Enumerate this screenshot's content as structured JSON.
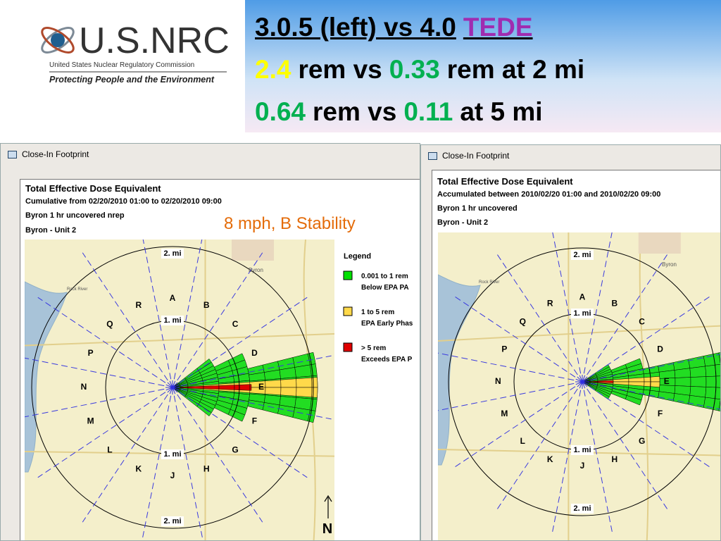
{
  "logo": {
    "name": "U.S.NRC",
    "agency": "United States Nuclear Regulatory Commission",
    "motto": "Protecting People and the Environment"
  },
  "headline": {
    "line1": {
      "text": "3.0.5 (left) vs 4.0",
      "highlight": "TEDE"
    },
    "line2": {
      "a": 2.4,
      "t1": "rem vs",
      "b": 0.33,
      "t2": "rem at 2 mi"
    },
    "line3": {
      "a": 0.64,
      "t1": "rem vs",
      "b": 0.11,
      "t2": "at 5 mi"
    }
  },
  "annotation": "8 mph, B Stability",
  "north": "N",
  "windows": [
    {
      "title": "Close-In Footprint",
      "report": [
        "Total Effective Dose Equivalent",
        "Cumulative from 02/20/2010 01:00 to 02/20/2010 09:00",
        "Byron 1 hr uncovered nrep",
        "Byron - Unit 2"
      ],
      "sectors": [
        "A",
        "B",
        "C",
        "D",
        "E",
        "F",
        "G",
        "H",
        "J",
        "K",
        "L",
        "M",
        "N",
        "P",
        "Q",
        "R"
      ],
      "rings": [
        "2. mi",
        "1. mi",
        "1. mi",
        "2. mi"
      ],
      "places": [
        "Byron",
        "Rock River"
      ],
      "legend": {
        "title": "Legend",
        "items": [
          {
            "label": "0.001 to 1 rem",
            "note": "Below EPA PA"
          },
          {
            "label": "1 to 5 rem",
            "note": "EPA Early Phas"
          },
          {
            "label": "> 5 rem",
            "note": "Exceeds EPA P"
          }
        ]
      }
    },
    {
      "title": "Close-In Footprint",
      "report": [
        "Total Effective Dose Equivalent",
        "Accumulated between 2010/02/20 01:00 and 2010/02/20 09:00",
        "Byron 1 hr uncovered",
        "Byron - Unit 2"
      ],
      "sectors": [
        "A",
        "B",
        "C",
        "D",
        "E",
        "F",
        "G",
        "H",
        "J",
        "K",
        "L",
        "M",
        "N",
        "P",
        "Q",
        "R"
      ],
      "rings": [
        "2. mi",
        "1. mi",
        "1. mi",
        "2. mi"
      ],
      "places": [
        "Byron",
        "Rock River"
      ]
    }
  ]
}
